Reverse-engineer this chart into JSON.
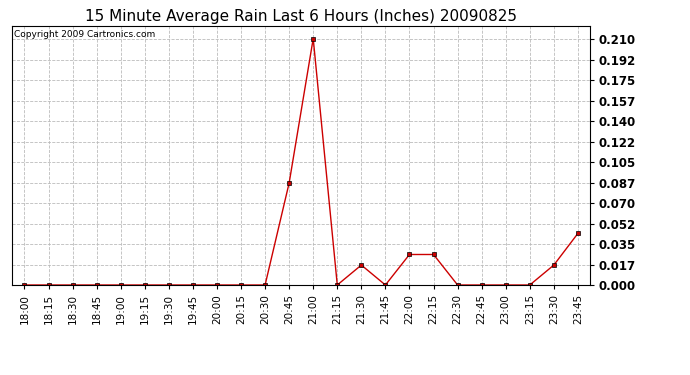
{
  "title": "15 Minute Average Rain Last 6 Hours (Inches) 20090825",
  "copyright": "Copyright 2009 Cartronics.com",
  "line_color": "#cc0000",
  "marker_color": "#000000",
  "background_color": "#ffffff",
  "grid_color": "#bbbbbb",
  "x_labels": [
    "18:00",
    "18:15",
    "18:30",
    "18:45",
    "19:00",
    "19:15",
    "19:30",
    "19:45",
    "20:00",
    "20:15",
    "20:30",
    "20:45",
    "21:00",
    "21:15",
    "21:30",
    "21:45",
    "22:00",
    "22:15",
    "22:30",
    "22:45",
    "23:00",
    "23:15",
    "23:30",
    "23:45"
  ],
  "y_values": [
    0.0,
    0.0,
    0.0,
    0.0,
    0.0,
    0.0,
    0.0,
    0.0,
    0.0,
    0.0,
    0.0,
    0.087,
    0.21,
    0.0,
    0.017,
    0.0,
    0.026,
    0.026,
    0.0,
    0.0,
    0.0,
    0.0,
    0.017,
    0.044
  ],
  "yticks": [
    0.0,
    0.017,
    0.035,
    0.052,
    0.07,
    0.087,
    0.105,
    0.122,
    0.14,
    0.157,
    0.175,
    0.192,
    0.21
  ],
  "ylim": [
    0.0,
    0.2205
  ],
  "title_fontsize": 11,
  "copyright_fontsize": 6.5,
  "tick_fontsize": 7.5,
  "ytick_fontsize": 8.5
}
